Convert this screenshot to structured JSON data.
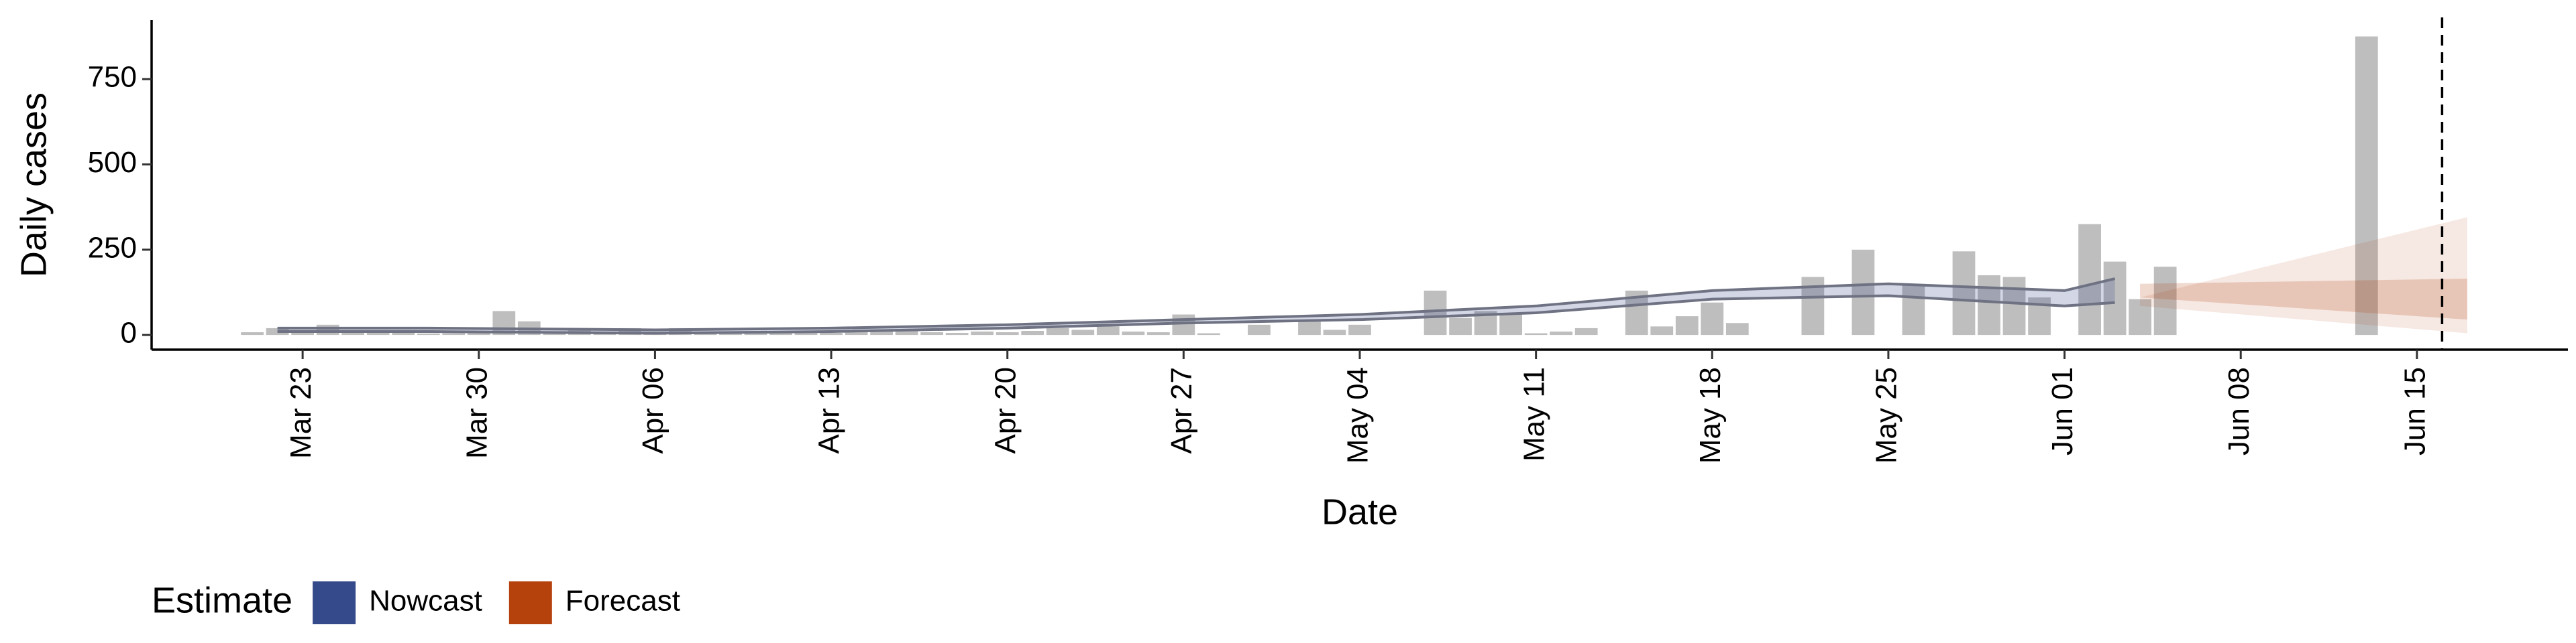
{
  "chart_data": {
    "type": "bar",
    "x_label": "Date",
    "y_label": "Daily cases",
    "legend_title": "Estimate",
    "bar_color": "#b3b3b3",
    "categories": [
      "Mar 21",
      "Mar 22",
      "Mar 23",
      "Mar 24",
      "Mar 25",
      "Mar 26",
      "Mar 27",
      "Mar 28",
      "Mar 29",
      "Mar 30",
      "Mar 31",
      "Apr 01",
      "Apr 02",
      "Apr 03",
      "Apr 04",
      "Apr 05",
      "Apr 06",
      "Apr 07",
      "Apr 08",
      "Apr 09",
      "Apr 10",
      "Apr 11",
      "Apr 12",
      "Apr 13",
      "Apr 14",
      "Apr 15",
      "Apr 16",
      "Apr 17",
      "Apr 18",
      "Apr 19",
      "Apr 20",
      "Apr 21",
      "Apr 22",
      "Apr 23",
      "Apr 24",
      "Apr 25",
      "Apr 26",
      "Apr 27",
      "Apr 28",
      "Apr 29",
      "Apr 30",
      "May 01",
      "May 02",
      "May 03",
      "May 04",
      "May 05",
      "May 06",
      "May 07",
      "May 08",
      "May 09",
      "May 10",
      "May 11",
      "May 12",
      "May 13",
      "May 14",
      "May 15",
      "May 16",
      "May 17",
      "May 18",
      "May 19",
      "May 20",
      "May 21",
      "May 22",
      "May 23",
      "May 24",
      "May 25",
      "May 26",
      "May 27",
      "May 28",
      "May 29",
      "May 30",
      "May 31",
      "Jun 01",
      "Jun 02",
      "Jun 03",
      "Jun 04",
      "Jun 05",
      "Jun 06",
      "Jun 07",
      "Jun 08",
      "Jun 09",
      "Jun 10",
      "Jun 11",
      "Jun 12",
      "Jun 13",
      "Jun 14",
      "Jun 15",
      "Jun 16",
      "Jun 17"
    ],
    "values": [
      8,
      20,
      10,
      30,
      10,
      6,
      10,
      4,
      5,
      8,
      70,
      40,
      5,
      15,
      10,
      20,
      8,
      20,
      6,
      5,
      8,
      10,
      8,
      6,
      12,
      10,
      15,
      8,
      6,
      10,
      8,
      12,
      20,
      15,
      25,
      10,
      8,
      60,
      5,
      null,
      30,
      null,
      40,
      15,
      30,
      null,
      null,
      130,
      50,
      70,
      60,
      5,
      10,
      20,
      null,
      130,
      25,
      55,
      95,
      35,
      null,
      null,
      170,
      null,
      250,
      null,
      145,
      null,
      245,
      175,
      170,
      110,
      null,
      325,
      215,
      105,
      200,
      null,
      null,
      null,
      null,
      null,
      null,
      null,
      875,
      null,
      null,
      null,
      null
    ],
    "bands": [
      {
        "name": "Nowcast",
        "color": "#354a8a",
        "x": [
          "Mar 22",
          "Mar 28",
          "Apr 06",
          "Apr 13",
          "Apr 20",
          "Apr 27",
          "May 04",
          "May 11",
          "May 18",
          "May 25",
          "Jun 01",
          "Jun 03"
        ],
        "upper": [
          20,
          20,
          15,
          20,
          30,
          45,
          60,
          85,
          130,
          150,
          130,
          165
        ],
        "lower": [
          10,
          10,
          5,
          10,
          20,
          35,
          45,
          65,
          105,
          115,
          85,
          95
        ]
      },
      {
        "name": "Forecast",
        "color": "#b5410d",
        "x": [
          "Jun 04",
          "Jun 17"
        ],
        "upper": [
          110,
          345
        ],
        "lower": [
          85,
          5
        ],
        "inner_upper": [
          150,
          165
        ],
        "inner_lower": [
          110,
          45
        ]
      }
    ],
    "vline": "Jun 16",
    "ylim": [
      -43,
      923
    ],
    "yticks": [
      0,
      250,
      500,
      750
    ],
    "xticks": [
      "Mar 23",
      "Mar 30",
      "Apr 06",
      "Apr 13",
      "Apr 20",
      "Apr 27",
      "May 04",
      "May 11",
      "May 18",
      "May 25",
      "Jun 01",
      "Jun 08",
      "Jun 15"
    ]
  }
}
